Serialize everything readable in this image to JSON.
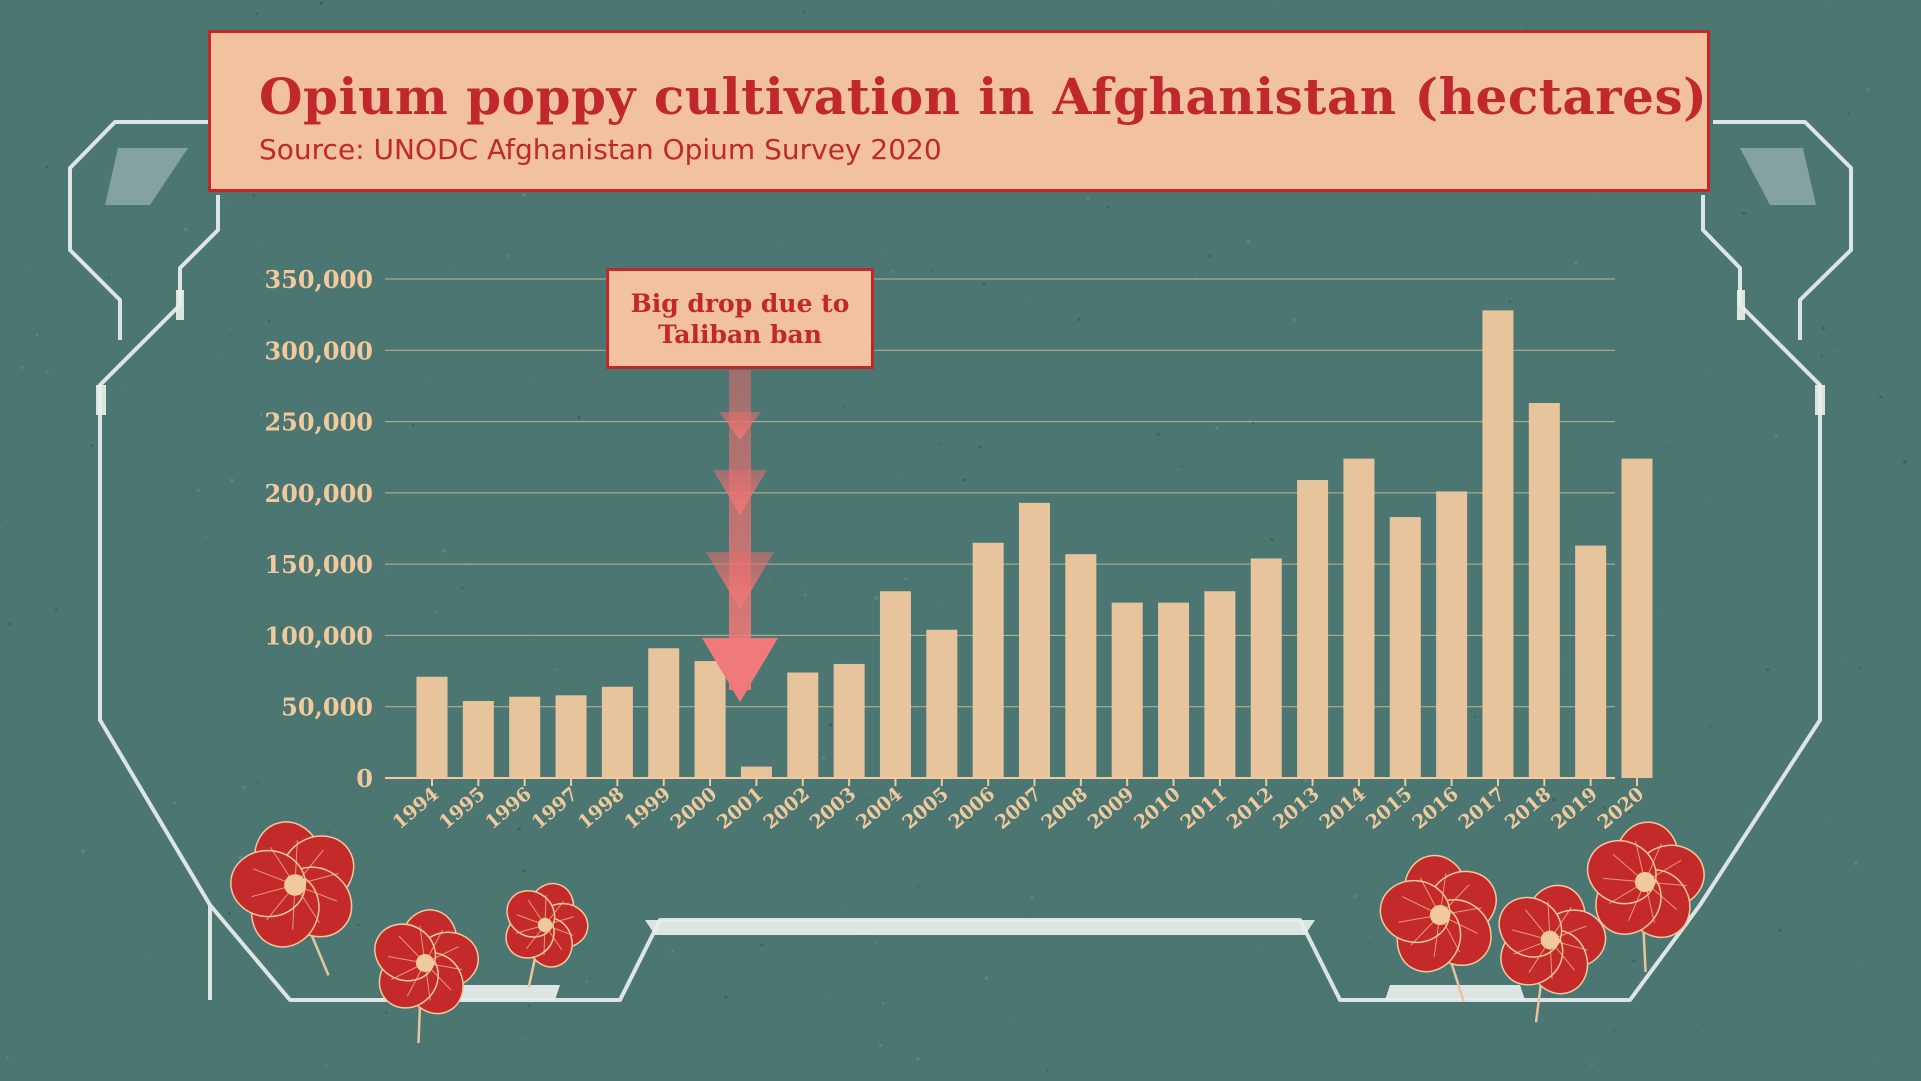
{
  "colors": {
    "background": "#4b7672",
    "panel": "#f2c29f",
    "accent_red": "#c0282c",
    "bar": "#e8c49d",
    "tick_text": "#f0c99d",
    "frame": "#e9eeee"
  },
  "header": {
    "title": "Opium poppy cultivation in Afghanistan (hectares)",
    "subtitle": "Source: UNODC Afghanistan Opium Survey 2020"
  },
  "annotation": {
    "line1": "Big drop due to",
    "line2": "Taliban ban",
    "target_year": "2001"
  },
  "chart_data": {
    "type": "bar",
    "title": "Opium poppy cultivation in Afghanistan (hectares)",
    "subtitle": "Source: UNODC Afghanistan Opium Survey 2020",
    "xlabel": "",
    "ylabel": "",
    "ylim": [
      0,
      350000
    ],
    "yticks": [
      0,
      50000,
      100000,
      150000,
      200000,
      250000,
      300000,
      350000
    ],
    "ytick_labels": [
      "0",
      "50,000",
      "100,000",
      "150,000",
      "200,000",
      "250,000",
      "300,000",
      "350,000"
    ],
    "grid": true,
    "categories": [
      "1994",
      "1995",
      "1996",
      "1997",
      "1998",
      "1999",
      "2000",
      "2001",
      "2002",
      "2003",
      "2004",
      "2005",
      "2006",
      "2007",
      "2008",
      "2009",
      "2010",
      "2011",
      "2012",
      "2013",
      "2014",
      "2015",
      "2016",
      "2017",
      "2018",
      "2019",
      "2020"
    ],
    "values": [
      71000,
      54000,
      57000,
      58000,
      64000,
      91000,
      82000,
      8000,
      74000,
      80000,
      131000,
      104000,
      165000,
      193000,
      157000,
      123000,
      123000,
      131000,
      154000,
      209000,
      224000,
      183000,
      201000,
      328000,
      263000,
      163000,
      224000
    ]
  }
}
